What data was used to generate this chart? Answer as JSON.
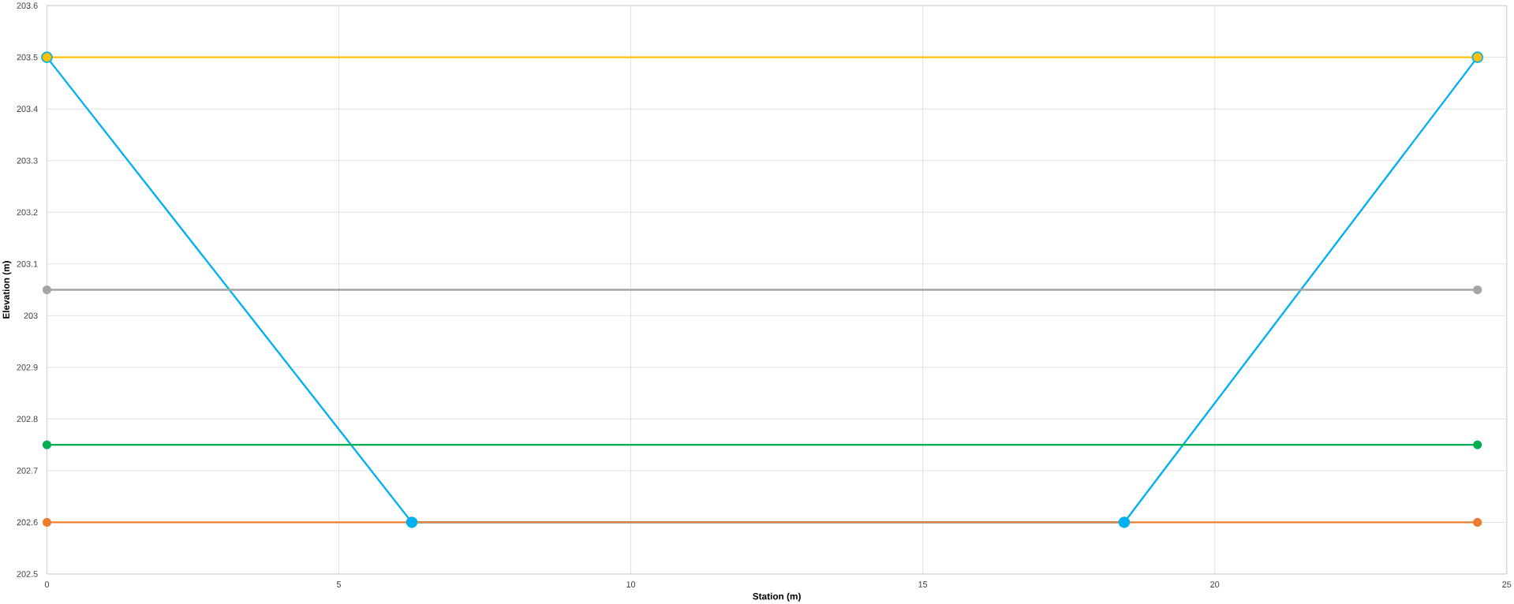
{
  "chart_data": {
    "type": "line",
    "xlabel": "Station (m)",
    "ylabel": "Elevation (m)",
    "xlim": [
      0,
      25
    ],
    "xticks": [
      0,
      5,
      10,
      15,
      20,
      25
    ],
    "ylim": [
      202.5,
      203.6
    ],
    "yticks": [
      202.5,
      202.6,
      202.7,
      202.8,
      202.9,
      203,
      203.1,
      203.2,
      203.3,
      203.4,
      203.5,
      203.6
    ],
    "grid": true,
    "marker": "circle",
    "series": [
      {
        "color": "#00b0f0",
        "x": [
          0,
          6.25,
          18.45,
          24.5
        ],
        "values": [
          203.5,
          202.6,
          202.6,
          203.5
        ]
      },
      {
        "color": "#ffc000",
        "x": [
          0,
          24.5
        ],
        "values": [
          203.5,
          203.5
        ]
      },
      {
        "color": "#a5a5a5",
        "x": [
          0,
          24.5
        ],
        "values": [
          203.05,
          203.05
        ]
      },
      {
        "color": "#00b050",
        "x": [
          0,
          24.5
        ],
        "values": [
          202.75,
          202.75
        ]
      },
      {
        "color": "#ed7d31",
        "x": [
          0,
          24.5
        ],
        "values": [
          202.6,
          202.6
        ]
      }
    ]
  }
}
